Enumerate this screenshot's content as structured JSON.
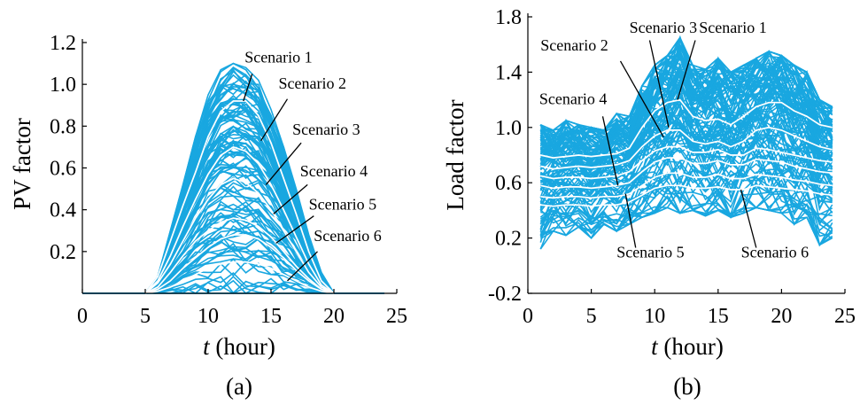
{
  "colors": {
    "band": "#19a7e0",
    "scenario": "#ffffff",
    "axis": "#000000",
    "annotation": "#000000"
  },
  "chart_data": [
    {
      "type": "line",
      "panel_label": "(a)",
      "xlabel_italic": "t",
      "xlabel_rest": " (hour)",
      "ylabel": "PV factor",
      "xlim": [
        0,
        25
      ],
      "ylim": [
        0,
        1.2
      ],
      "xticks": [
        0,
        5,
        10,
        15,
        20,
        25
      ],
      "xtick_labels": [
        "0",
        "5",
        "10",
        "15",
        "20",
        "25"
      ],
      "yticks": [
        0.2,
        0.4,
        0.6,
        0.8,
        1.0,
        1.2
      ],
      "ytick_labels": [
        "0.2",
        "0.4",
        "0.6",
        "0.8",
        "1.0",
        "1.2"
      ],
      "band": {
        "x": [
          0,
          1,
          2,
          3,
          4,
          5,
          6,
          7,
          8,
          9,
          10,
          11,
          12,
          13,
          14,
          15,
          16,
          17,
          18,
          19,
          20,
          21,
          22,
          23,
          24
        ],
        "upper": [
          0,
          0,
          0,
          0,
          0,
          0,
          0.08,
          0.3,
          0.52,
          0.75,
          0.95,
          1.07,
          1.1,
          1.08,
          1.02,
          0.88,
          0.7,
          0.5,
          0.28,
          0.1,
          0,
          0,
          0,
          0,
          0
        ],
        "lower": [
          0,
          0,
          0,
          0,
          0,
          0,
          0,
          0,
          0,
          0,
          0,
          0,
          0,
          0,
          0,
          0,
          0,
          0,
          0,
          0,
          0,
          0,
          0,
          0,
          0
        ]
      },
      "series": [
        {
          "name": "Scenario 1",
          "x": [
            5,
            6,
            7,
            8,
            9,
            10,
            11,
            12,
            13,
            14,
            15,
            16,
            17,
            18,
            19,
            20
          ],
          "values": [
            0,
            0.08,
            0.25,
            0.42,
            0.58,
            0.75,
            0.87,
            0.92,
            0.92,
            0.85,
            0.72,
            0.55,
            0.38,
            0.2,
            0.06,
            0
          ]
        },
        {
          "name": "Scenario 2",
          "x": [
            5,
            6,
            7,
            8,
            9,
            10,
            11,
            12,
            13,
            14,
            15,
            16,
            17,
            18,
            19,
            20
          ],
          "values": [
            0,
            0.06,
            0.18,
            0.32,
            0.45,
            0.57,
            0.66,
            0.7,
            0.68,
            0.62,
            0.52,
            0.4,
            0.27,
            0.14,
            0.04,
            0
          ]
        },
        {
          "name": "Scenario 3",
          "x": [
            5,
            6,
            7,
            8,
            9,
            10,
            11,
            12,
            13,
            14,
            15,
            16,
            17,
            18,
            19,
            20
          ],
          "values": [
            0,
            0.05,
            0.14,
            0.25,
            0.36,
            0.45,
            0.52,
            0.55,
            0.53,
            0.48,
            0.4,
            0.3,
            0.2,
            0.1,
            0.03,
            0
          ]
        },
        {
          "name": "Scenario 4",
          "x": [
            5,
            6,
            7,
            8,
            9,
            10,
            11,
            12,
            13,
            14,
            15,
            16,
            17,
            18,
            19,
            20
          ],
          "values": [
            0,
            0.03,
            0.1,
            0.18,
            0.25,
            0.3,
            0.34,
            0.36,
            0.35,
            0.32,
            0.27,
            0.2,
            0.13,
            0.07,
            0.02,
            0
          ]
        },
        {
          "name": "Scenario 5",
          "x": [
            5,
            6,
            7,
            8,
            9,
            10,
            11,
            12,
            13,
            14,
            15,
            16,
            17,
            18,
            19,
            20
          ],
          "values": [
            0,
            0.02,
            0.06,
            0.12,
            0.17,
            0.22,
            0.26,
            0.28,
            0.28,
            0.26,
            0.22,
            0.17,
            0.11,
            0.06,
            0.02,
            0
          ]
        },
        {
          "name": "Scenario 6",
          "x": [
            5,
            6,
            7,
            8,
            9,
            10,
            11,
            12,
            13,
            14,
            15,
            16,
            17,
            18,
            19,
            20
          ],
          "values": [
            0,
            0.01,
            0.03,
            0.06,
            0.09,
            0.12,
            0.14,
            0.15,
            0.15,
            0.14,
            0.12,
            0.09,
            0.06,
            0.03,
            0.01,
            0
          ]
        }
      ],
      "annotations": [
        {
          "text": "Scenario 1",
          "series_index": 0,
          "text_x": 12.9,
          "text_y": 1.105,
          "tip_x": 13.5,
          "tip_y": 1.05,
          "end_x": 12.8,
          "end_y": 0.92
        },
        {
          "text": "Scenario 2",
          "series_index": 1,
          "text_x": 15.6,
          "text_y": 0.98,
          "tip_x": 16.3,
          "tip_y": 0.93,
          "end_x": 14.2,
          "end_y": 0.73
        },
        {
          "text": "Scenario 3",
          "series_index": 2,
          "text_x": 16.7,
          "text_y": 0.76,
          "tip_x": 17.4,
          "tip_y": 0.72,
          "end_x": 14.6,
          "end_y": 0.52
        },
        {
          "text": "Scenario 4",
          "series_index": 3,
          "text_x": 17.3,
          "text_y": 0.56,
          "tip_x": 17.9,
          "tip_y": 0.52,
          "end_x": 15.2,
          "end_y": 0.38
        },
        {
          "text": "Scenario 5",
          "series_index": 4,
          "text_x": 18.0,
          "text_y": 0.4,
          "tip_x": 18.4,
          "tip_y": 0.37,
          "end_x": 15.4,
          "end_y": 0.24
        },
        {
          "text": "Scenario 6",
          "series_index": 5,
          "text_x": 18.4,
          "text_y": 0.25,
          "tip_x": 18.7,
          "tip_y": 0.2,
          "end_x": 16.3,
          "end_y": 0.06
        }
      ]
    },
    {
      "type": "line",
      "panel_label": "(b)",
      "xlabel_italic": "t",
      "xlabel_rest": " (hour)",
      "ylabel": "Load factor",
      "xlim": [
        0,
        25
      ],
      "ylim": [
        -0.2,
        1.8
      ],
      "xticks": [
        0,
        5,
        10,
        15,
        20,
        25
      ],
      "xtick_labels": [
        "0",
        "5",
        "10",
        "15",
        "20",
        "25"
      ],
      "yticks": [
        -0.2,
        0.2,
        0.6,
        1.0,
        1.4,
        1.8
      ],
      "ytick_labels": [
        "-0.2",
        "0.2",
        "0.6",
        "1.0",
        "1.4",
        "1.8"
      ],
      "band": {
        "x": [
          1,
          2,
          3,
          4,
          5,
          6,
          7,
          8,
          9,
          10,
          11,
          12,
          13,
          14,
          15,
          16,
          17,
          18,
          19,
          20,
          21,
          22,
          23,
          24
        ],
        "upper": [
          1.02,
          0.98,
          1.05,
          1.02,
          1.0,
          0.98,
          1.1,
          1.08,
          1.3,
          1.45,
          1.52,
          1.65,
          1.45,
          1.42,
          1.5,
          1.4,
          1.45,
          1.5,
          1.55,
          1.52,
          1.45,
          1.4,
          1.2,
          1.15
        ],
        "lower": [
          0.12,
          0.25,
          0.22,
          0.28,
          0.2,
          0.3,
          0.25,
          0.3,
          0.35,
          0.38,
          0.42,
          0.38,
          0.4,
          0.36,
          0.4,
          0.35,
          0.38,
          0.42,
          0.4,
          0.38,
          0.3,
          0.35,
          0.15,
          0.2
        ]
      },
      "series": [
        {
          "name": "Scenario 1",
          "x": [
            1,
            2,
            3,
            4,
            5,
            6,
            7,
            8,
            9,
            10,
            11,
            12,
            13,
            14,
            15,
            16,
            17,
            18,
            19,
            20,
            21,
            22,
            23,
            24
          ],
          "values": [
            0.8,
            0.78,
            0.79,
            0.8,
            0.79,
            0.8,
            0.81,
            0.85,
            1.0,
            1.12,
            1.18,
            1.2,
            1.08,
            1.05,
            1.06,
            1.02,
            1.08,
            1.15,
            1.18,
            1.18,
            1.12,
            1.08,
            1.02,
            1.0
          ]
        },
        {
          "name": "Scenario 2",
          "x": [
            1,
            2,
            3,
            4,
            5,
            6,
            7,
            8,
            9,
            10,
            11,
            12,
            13,
            14,
            15,
            16,
            17,
            18,
            19,
            20,
            21,
            22,
            23,
            24
          ],
          "values": [
            0.72,
            0.7,
            0.71,
            0.72,
            0.71,
            0.72,
            0.73,
            0.76,
            0.86,
            0.94,
            0.98,
            0.98,
            0.9,
            0.88,
            0.9,
            0.86,
            0.9,
            0.98,
            1.0,
            0.98,
            0.94,
            0.9,
            0.86,
            0.84
          ]
        },
        {
          "name": "Scenario 3",
          "x": [
            1,
            2,
            3,
            4,
            5,
            6,
            7,
            8,
            9,
            10,
            11,
            12,
            13,
            14,
            15,
            16,
            17,
            18,
            19,
            20,
            21,
            22,
            23,
            24
          ],
          "values": [
            0.65,
            0.63,
            0.64,
            0.64,
            0.63,
            0.64,
            0.65,
            0.68,
            0.76,
            0.83,
            0.86,
            0.86,
            0.82,
            0.82,
            0.84,
            0.8,
            0.8,
            0.85,
            0.84,
            0.82,
            0.8,
            0.78,
            0.76,
            0.75
          ]
        },
        {
          "name": "Scenario 4",
          "x": [
            1,
            2,
            3,
            4,
            5,
            6,
            7,
            8,
            9,
            10,
            11,
            12,
            13,
            14,
            15,
            16,
            17,
            18,
            19,
            20,
            21,
            22,
            23,
            24
          ],
          "values": [
            0.58,
            0.56,
            0.57,
            0.57,
            0.56,
            0.57,
            0.58,
            0.6,
            0.68,
            0.75,
            0.78,
            0.78,
            0.74,
            0.74,
            0.76,
            0.73,
            0.73,
            0.77,
            0.76,
            0.75,
            0.72,
            0.7,
            0.68,
            0.67
          ]
        },
        {
          "name": "Scenario 5",
          "x": [
            1,
            2,
            3,
            4,
            5,
            6,
            7,
            8,
            9,
            10,
            11,
            12,
            13,
            14,
            15,
            16,
            17,
            18,
            19,
            20,
            21,
            22,
            23,
            24
          ],
          "values": [
            0.5,
            0.49,
            0.5,
            0.5,
            0.49,
            0.5,
            0.5,
            0.52,
            0.58,
            0.64,
            0.67,
            0.67,
            0.64,
            0.64,
            0.66,
            0.63,
            0.63,
            0.66,
            0.65,
            0.64,
            0.62,
            0.61,
            0.59,
            0.58
          ]
        },
        {
          "name": "Scenario 6",
          "x": [
            1,
            2,
            3,
            4,
            5,
            6,
            7,
            8,
            9,
            10,
            11,
            12,
            13,
            14,
            15,
            16,
            17,
            18,
            19,
            20,
            21,
            22,
            23,
            24
          ],
          "values": [
            0.44,
            0.43,
            0.44,
            0.44,
            0.43,
            0.44,
            0.44,
            0.46,
            0.51,
            0.56,
            0.58,
            0.58,
            0.56,
            0.56,
            0.57,
            0.55,
            0.55,
            0.58,
            0.57,
            0.56,
            0.55,
            0.54,
            0.52,
            0.51
          ]
        }
      ],
      "annotations": [
        {
          "text": "Scenario 3",
          "series_index": 2,
          "text_x": 8.0,
          "text_y": 1.685,
          "tip_x": 9.6,
          "tip_y": 1.63,
          "end_x": 11.1,
          "end_y": 1.0
        },
        {
          "text": "Scenario 1",
          "series_index": 0,
          "text_x": 13.5,
          "text_y": 1.685,
          "tip_x": 13.2,
          "tip_y": 1.63,
          "end_x": 11.8,
          "end_y": 1.2
        },
        {
          "text": "Scenario 2",
          "series_index": 1,
          "text_x": 1.0,
          "text_y": 1.555,
          "tip_x": 7.3,
          "tip_y": 1.48,
          "end_x": 10.7,
          "end_y": 0.93
        },
        {
          "text": "Scenario 4",
          "series_index": 3,
          "text_x": 0.9,
          "text_y": 1.17,
          "tip_x": 5.9,
          "tip_y": 1.08,
          "end_x": 7.1,
          "end_y": 0.58
        },
        {
          "text": "Scenario 5",
          "series_index": 4,
          "text_x": 7.0,
          "text_y": 0.06,
          "tip_x": 8.5,
          "tip_y": 0.13,
          "end_x": 7.7,
          "end_y": 0.52
        },
        {
          "text": "Scenario 6",
          "series_index": 5,
          "text_x": 16.8,
          "text_y": 0.06,
          "tip_x": 18.0,
          "tip_y": 0.13,
          "end_x": 16.8,
          "end_y": 0.55
        }
      ]
    }
  ]
}
